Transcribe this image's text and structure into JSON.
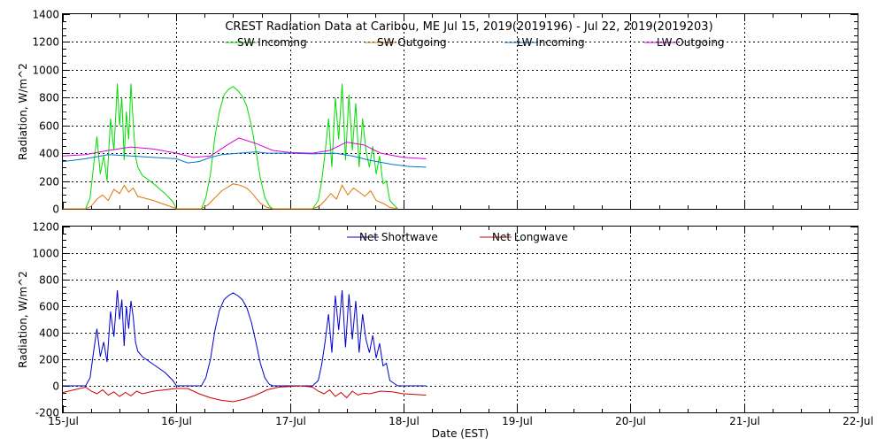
{
  "chart_data": [
    {
      "type": "line",
      "title": "CREST Radiation Data at Caribou, ME   Jul 15, 2019(2019196) - Jul 22, 2019(2019203)",
      "xlabel": "",
      "ylabel": "Radiation, W/m^2",
      "ylim": [
        0,
        1400
      ],
      "xlim_days": [
        0,
        7
      ],
      "yticks": [
        "0",
        "200",
        "400",
        "600",
        "800",
        "1000",
        "1200",
        "1400"
      ],
      "grid": true,
      "legend_position": "top-center",
      "series": [
        {
          "name": "SW Incoming",
          "color": "#00dd00",
          "x": [
            0.0,
            0.2,
            0.24,
            0.27,
            0.3,
            0.33,
            0.36,
            0.39,
            0.42,
            0.45,
            0.48,
            0.5,
            0.52,
            0.54,
            0.56,
            0.58,
            0.6,
            0.62,
            0.64,
            0.66,
            0.7,
            0.8,
            0.9,
            0.97,
            1.0,
            1.22,
            1.26,
            1.3,
            1.34,
            1.38,
            1.42,
            1.46,
            1.5,
            1.54,
            1.58,
            1.62,
            1.66,
            1.7,
            1.74,
            1.78,
            1.82,
            1.85,
            2.0,
            2.2,
            2.25,
            2.28,
            2.31,
            2.34,
            2.37,
            2.4,
            2.43,
            2.46,
            2.49,
            2.52,
            2.55,
            2.58,
            2.61,
            2.64,
            2.67,
            2.7,
            2.73,
            2.76,
            2.79,
            2.82,
            2.85,
            2.88,
            2.95
          ],
          "y": [
            0,
            0,
            80,
            300,
            520,
            250,
            380,
            200,
            650,
            420,
            900,
            600,
            800,
            350,
            700,
            500,
            900,
            620,
            380,
            300,
            240,
            180,
            110,
            50,
            0,
            0,
            80,
            250,
            520,
            700,
            820,
            860,
            880,
            850,
            810,
            740,
            600,
            420,
            220,
            80,
            20,
            0,
            0,
            0,
            60,
            200,
            400,
            650,
            300,
            800,
            500,
            900,
            350,
            820,
            420,
            760,
            300,
            650,
            420,
            300,
            450,
            250,
            380,
            180,
            200,
            60,
            0
          ]
        },
        {
          "name": "SW Outgoing",
          "color": "#dd7700",
          "x": [
            0.0,
            0.2,
            0.25,
            0.3,
            0.35,
            0.4,
            0.45,
            0.5,
            0.54,
            0.58,
            0.62,
            0.66,
            0.8,
            0.97,
            1.0,
            1.22,
            1.28,
            1.34,
            1.4,
            1.46,
            1.5,
            1.56,
            1.62,
            1.68,
            1.74,
            1.8,
            1.85,
            2.0,
            2.2,
            2.26,
            2.31,
            2.36,
            2.41,
            2.46,
            2.51,
            2.56,
            2.61,
            2.66,
            2.71,
            2.76,
            2.82,
            2.88,
            2.95
          ],
          "y": [
            0,
            0,
            20,
            70,
            100,
            60,
            140,
            110,
            170,
            120,
            150,
            90,
            60,
            10,
            0,
            0,
            30,
            80,
            130,
            160,
            180,
            170,
            150,
            100,
            40,
            10,
            0,
            0,
            0,
            20,
            60,
            110,
            70,
            170,
            100,
            150,
            120,
            90,
            130,
            60,
            40,
            10,
            0
          ]
        },
        {
          "name": "LW Incoming",
          "color": "#0077cc",
          "x": [
            0.0,
            0.2,
            0.4,
            0.6,
            0.8,
            1.0,
            1.1,
            1.2,
            1.3,
            1.4,
            1.55,
            1.7,
            1.8,
            2.0,
            2.2,
            2.4,
            2.55,
            2.7,
            2.9,
            3.05,
            3.2
          ],
          "y": [
            340,
            360,
            390,
            380,
            370,
            360,
            330,
            340,
            370,
            390,
            400,
            410,
            400,
            400,
            395,
            400,
            380,
            350,
            320,
            305,
            300
          ]
        },
        {
          "name": "LW Outgoing",
          "color": "#dd00dd",
          "x": [
            0.0,
            0.2,
            0.4,
            0.6,
            0.8,
            1.0,
            1.15,
            1.3,
            1.45,
            1.55,
            1.7,
            1.85,
            2.0,
            2.2,
            2.35,
            2.5,
            2.65,
            2.8,
            3.0,
            3.2
          ],
          "y": [
            380,
            390,
            420,
            445,
            430,
            400,
            370,
            380,
            460,
            510,
            470,
            420,
            405,
            400,
            420,
            480,
            460,
            400,
            370,
            360
          ]
        }
      ]
    },
    {
      "type": "line",
      "title": "",
      "xlabel": "Date (EST)",
      "ylabel": "Radiation, W/m^2",
      "ylim": [
        -200,
        1200
      ],
      "xlim_days": [
        0,
        7
      ],
      "yticks": [
        "-200",
        "0",
        "200",
        "400",
        "600",
        "800",
        "1000",
        "1200"
      ],
      "xticks": [
        "15-Jul",
        "16-Jul",
        "17-Jul",
        "18-Jul",
        "19-Jul",
        "20-Jul",
        "21-Jul",
        "22-Jul"
      ],
      "grid": true,
      "legend_position": "top-center",
      "series": [
        {
          "name": "Net Shortwave",
          "color": "#0000cc",
          "x": [
            0.0,
            0.2,
            0.24,
            0.27,
            0.3,
            0.33,
            0.36,
            0.39,
            0.42,
            0.45,
            0.48,
            0.5,
            0.52,
            0.54,
            0.56,
            0.58,
            0.6,
            0.62,
            0.64,
            0.66,
            0.7,
            0.8,
            0.9,
            0.97,
            1.0,
            1.22,
            1.26,
            1.3,
            1.34,
            1.38,
            1.42,
            1.46,
            1.5,
            1.54,
            1.58,
            1.62,
            1.66,
            1.7,
            1.74,
            1.78,
            1.82,
            1.85,
            2.0,
            2.2,
            2.25,
            2.28,
            2.31,
            2.34,
            2.37,
            2.4,
            2.43,
            2.46,
            2.49,
            2.52,
            2.55,
            2.58,
            2.61,
            2.64,
            2.67,
            2.7,
            2.73,
            2.76,
            2.79,
            2.82,
            2.85,
            2.88,
            2.95,
            3.0,
            3.2
          ],
          "y": [
            0,
            0,
            60,
            250,
            430,
            220,
            330,
            180,
            560,
            370,
            720,
            500,
            650,
            300,
            600,
            430,
            640,
            520,
            330,
            260,
            220,
            160,
            100,
            40,
            0,
            0,
            60,
            200,
            420,
            570,
            650,
            680,
            700,
            680,
            650,
            590,
            480,
            330,
            170,
            60,
            10,
            0,
            0,
            0,
            40,
            160,
            330,
            540,
            250,
            680,
            420,
            720,
            290,
            690,
            350,
            640,
            250,
            540,
            350,
            250,
            380,
            210,
            320,
            150,
            170,
            40,
            0,
            0,
            0
          ]
        },
        {
          "name": "Net Longwave",
          "color": "#cc0000",
          "x": [
            0.0,
            0.1,
            0.2,
            0.25,
            0.3,
            0.35,
            0.4,
            0.45,
            0.5,
            0.55,
            0.6,
            0.65,
            0.7,
            0.8,
            0.9,
            1.0,
            1.1,
            1.2,
            1.3,
            1.4,
            1.5,
            1.6,
            1.7,
            1.8,
            1.9,
            2.0,
            2.1,
            2.2,
            2.25,
            2.3,
            2.35,
            2.4,
            2.45,
            2.5,
            2.55,
            2.6,
            2.65,
            2.7,
            2.75,
            2.8,
            2.9,
            3.0,
            3.1,
            3.2
          ],
          "y": [
            -50,
            -30,
            -10,
            -40,
            -60,
            -30,
            -70,
            -45,
            -80,
            -50,
            -75,
            -40,
            -60,
            -40,
            -30,
            -20,
            -20,
            -60,
            -90,
            -110,
            -120,
            -100,
            -70,
            -30,
            -10,
            -5,
            0,
            -10,
            -40,
            -60,
            -30,
            -80,
            -50,
            -90,
            -40,
            -70,
            -55,
            -60,
            -50,
            -40,
            -45,
            -60,
            -65,
            -70
          ]
        }
      ]
    }
  ]
}
